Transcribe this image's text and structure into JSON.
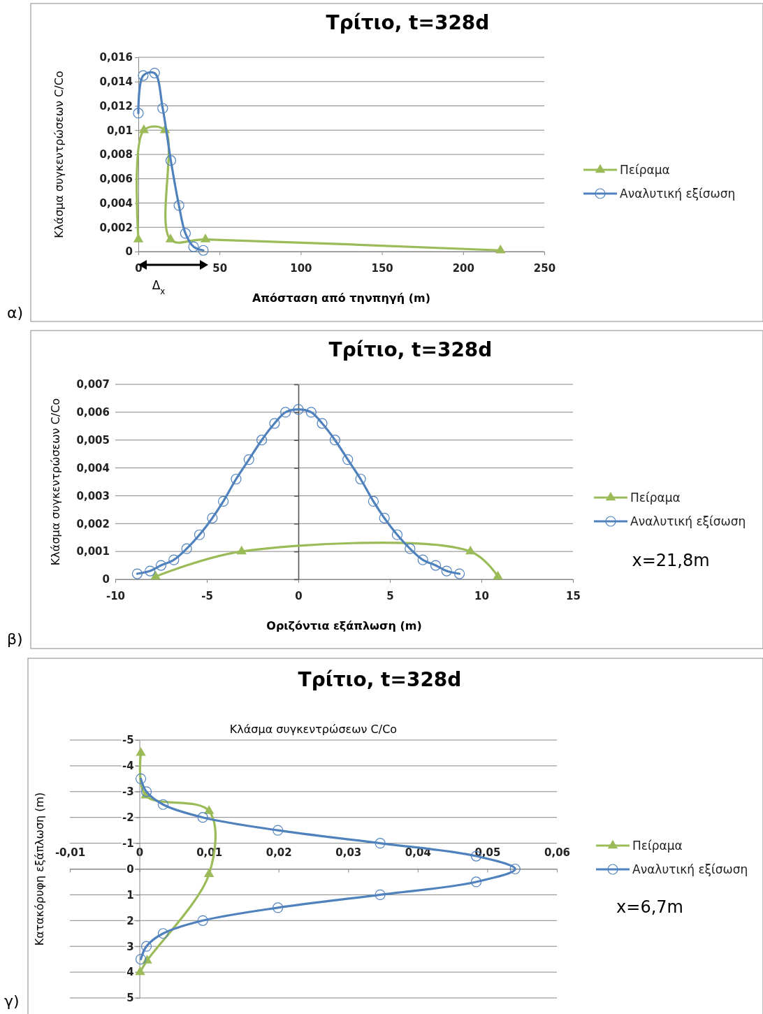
{
  "chart_data": [
    {
      "type": "line",
      "title": "Τρίτιο, t=328d",
      "xlabel": "Απόσταση από τηνπηγή (m)",
      "ylabel": "Κλάσμα συγκεντρώσεων C/Co",
      "xlim": [
        0,
        250
      ],
      "xticks": [
        0,
        50,
        100,
        150,
        200,
        250
      ],
      "ylim": [
        0,
        0.016
      ],
      "yticks": [
        0,
        {
          "value": 0.002,
          "label": "0,002"
        },
        {
          "value": 0.004,
          "label": "0,004"
        },
        {
          "value": 0.006,
          "label": "0,006"
        },
        {
          "value": 0.008,
          "label": "0,008"
        },
        {
          "value": 0.01,
          "label": "0,01"
        },
        {
          "value": 0.012,
          "label": "0,012"
        },
        {
          "value": 0.014,
          "label": "0,014"
        },
        {
          "value": 0.016,
          "label": "0,016"
        }
      ],
      "grid": "y",
      "legend": "right",
      "series": [
        {
          "name": "Πείραμα",
          "color": "#9bbb59",
          "marker": "triangle",
          "x": [
            0,
            3.4,
            16.4,
            19.8,
            41.3,
            223
          ],
          "values": [
            0.001,
            0.01,
            0.01,
            0.001,
            0.001,
            0.0001
          ]
        },
        {
          "name": "Αναλυτική εξίσωση",
          "color": "#4f81bd",
          "marker": "circle",
          "x": [
            0,
            3,
            10,
            15,
            20,
            25,
            29,
            34,
            40
          ],
          "values": [
            0.0114,
            0.0145,
            0.0147,
            0.0118,
            0.0075,
            0.0038,
            0.0015,
            0.0004,
            0.0001
          ]
        }
      ],
      "annotations": [
        "α)",
        "Δ$_{x}$"
      ]
    },
    {
      "type": "line",
      "title": "Τρίτιο, t=328d",
      "xlabel": "Οριζόντια εξάπλωση (m)",
      "ylabel": "Κλάσμα συγκεντρώσεων C/Co",
      "xlim": [
        -10,
        15
      ],
      "xticks": [
        -10,
        -5,
        0,
        5,
        10,
        15
      ],
      "ylim": [
        0,
        0.007
      ],
      "yticks": [
        0,
        {
          "value": 0.001,
          "label": "0,001"
        },
        {
          "value": 0.002,
          "label": "0,002"
        },
        {
          "value": 0.003,
          "label": "0,003"
        },
        {
          "value": 0.004,
          "label": "0,004"
        },
        {
          "value": 0.005,
          "label": "0,005"
        },
        {
          "value": 0.006,
          "label": "0,006"
        },
        {
          "value": 0.007,
          "label": "0,007"
        }
      ],
      "grid": "y",
      "legend": "right",
      "series": [
        {
          "name": "Πείραμα",
          "color": "#9bbb59",
          "marker": "triangle",
          "x": [
            -7.8,
            -3.1,
            9.4,
            10.9
          ],
          "values": [
            0.0001,
            0.001,
            0.001,
            0.0001
          ]
        },
        {
          "name": "Αναλυτική εξίσωση",
          "color": "#4f81bd",
          "marker": "circle",
          "x": [
            -8.8,
            -8.1,
            -7.5,
            -6.8,
            -6.1,
            -5.4,
            -4.7,
            -4.1,
            -3.4,
            -2.7,
            -2,
            -1.3,
            -0.7,
            0,
            0.7,
            1.3,
            2,
            2.7,
            3.4,
            4.1,
            4.7,
            5.4,
            6.1,
            6.8,
            7.5,
            8.1,
            8.8
          ],
          "values": [
            0.0002,
            0.0003,
            0.0005,
            0.0007,
            0.0011,
            0.0016,
            0.0022,
            0.0028,
            0.0036,
            0.0043,
            0.005,
            0.0056,
            0.006,
            0.0061,
            0.006,
            0.0056,
            0.005,
            0.0043,
            0.0036,
            0.0028,
            0.0022,
            0.0016,
            0.0011,
            0.0007,
            0.0005,
            0.0003,
            0.0002
          ]
        }
      ],
      "annotations": [
        "β)",
        "x=21,8m"
      ]
    },
    {
      "type": "line",
      "title": "Τρίτιο, t=328d",
      "xlabel": "Κλάσμα συγκεντρώσεων C/Co",
      "ylabel": "Κατακόρυφη εξάπλωση (m)",
      "xlim": [
        -0.01,
        0.06
      ],
      "xticks": [
        {
          "value": -0.01,
          "label": "-0,01"
        },
        0,
        {
          "value": 0.01,
          "label": "0,01"
        },
        {
          "value": 0.02,
          "label": "0,02"
        },
        {
          "value": 0.03,
          "label": "0,03"
        },
        {
          "value": 0.04,
          "label": "0,04"
        },
        {
          "value": 0.05,
          "label": "0,05"
        },
        {
          "value": 0.06,
          "label": "0,06"
        }
      ],
      "ylim": [
        5,
        -5
      ],
      "yticks": [
        -5,
        -4,
        -3,
        -2,
        -1,
        0,
        1,
        2,
        3,
        4,
        5
      ],
      "grid": "y",
      "legend": "right",
      "series": [
        {
          "name": "Πείραμα",
          "color": "#9bbb59",
          "marker": "triangle",
          "x": [
            0.0002,
            0.0009,
            0.01,
            0.01,
            0.0011,
            0.0001
          ],
          "values": [
            -4.5,
            -2.85,
            -2.25,
            0.2,
            3.55,
            4
          ]
        },
        {
          "name": "Αναλυτική εξίσωση",
          "color": "#4f81bd",
          "marker": "circle",
          "x": [
            0.0002,
            0.001,
            0.0034,
            0.0091,
            0.0199,
            0.0346,
            0.0484,
            0.054,
            0.0484,
            0.0346,
            0.0199,
            0.0091,
            0.0034,
            0.001,
            0.0002
          ],
          "values": [
            -3.5,
            -3,
            -2.5,
            -2,
            -1.5,
            -1,
            -0.5,
            0,
            0.5,
            1,
            1.5,
            2,
            2.5,
            3,
            3.5
          ]
        }
      ],
      "annotations": [
        "γ)",
        "x=6,7m"
      ]
    }
  ]
}
